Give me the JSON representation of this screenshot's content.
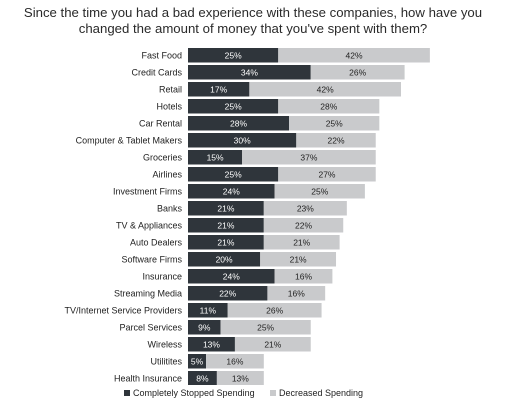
{
  "title": [
    "Since the time you had a bad experience with these companies, how have you",
    "changed the amount of money that you've spent with them?"
  ],
  "colors": {
    "stopped": "#2f353b",
    "decreased": "#c9cacc",
    "label_light": "#ffffff",
    "label_dark": "#222222"
  },
  "chart_data": {
    "type": "bar",
    "orientation": "horizontal",
    "stacked": true,
    "categories": [
      "Fast Food",
      "Credit Cards",
      "Retail",
      "Hotels",
      "Car Rental",
      "Computer & Tablet Makers",
      "Groceries",
      "Airlines",
      "Investment Firms",
      "Banks",
      "TV & Appliances",
      "Auto Dealers",
      "Software Firms",
      "Insurance",
      "Streaming Media",
      "TV/Internet Service Providers",
      "Parcel Services",
      "Wireless",
      "Utilitites",
      "Health Insurance"
    ],
    "series": [
      {
        "name": "Completely Stopped Spending",
        "values": [
          25,
          34,
          17,
          25,
          28,
          30,
          15,
          25,
          24,
          21,
          21,
          21,
          20,
          24,
          22,
          11,
          9,
          13,
          5,
          8
        ],
        "labels": [
          "25%",
          "34%",
          "17%",
          "25%",
          "28%",
          "30%",
          "15%",
          "25%",
          "24%",
          "21%",
          "21%",
          "21%",
          "20%",
          "24%",
          "22%",
          "11%",
          "9%",
          "13%",
          "5%",
          "8%"
        ]
      },
      {
        "name": "Decreased Spending",
        "values": [
          42,
          26,
          42,
          28,
          25,
          22,
          37,
          27,
          25,
          23,
          22,
          21,
          21,
          16,
          16,
          26,
          25,
          21,
          16,
          13
        ],
        "labels": [
          "42%",
          "26%",
          "42%",
          "28%",
          "25%",
          "22%",
          "37%",
          "27%",
          "25%",
          "23%",
          "22%",
          "21%",
          "21%",
          "16%",
          "16%",
          "26%",
          "25%",
          "21%",
          "16%",
          "13%"
        ]
      }
    ],
    "legend": "bottom",
    "grid": false
  }
}
